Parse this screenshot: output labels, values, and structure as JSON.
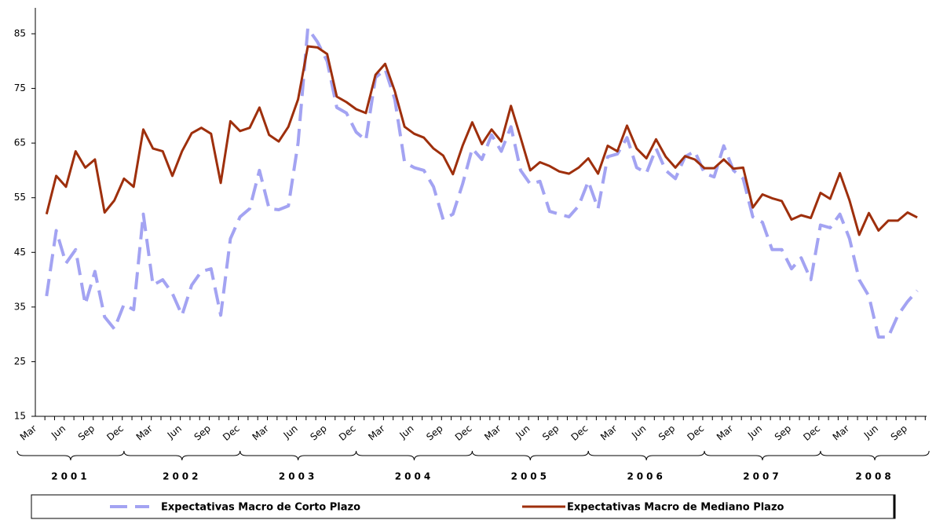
{
  "chart_data": {
    "type": "line",
    "categories": [
      "Mar",
      null,
      null,
      "Jun",
      null,
      null,
      "Sep",
      null,
      null,
      "Dec",
      null,
      null,
      "Mar",
      null,
      null,
      "Jun",
      null,
      null,
      "Sep",
      null,
      null,
      "Dec",
      null,
      null,
      "Mar",
      null,
      null,
      "Jun",
      null,
      null,
      "Sep",
      null,
      null,
      "Dec",
      null,
      null,
      "Mar",
      null,
      null,
      "Jun",
      null,
      null,
      "Sep",
      null,
      null,
      "Dec",
      null,
      null,
      "Mar",
      null,
      null,
      "Jun",
      null,
      null,
      "Sep",
      null,
      null,
      "Dec",
      null,
      null,
      "Mar",
      null,
      null,
      "Jun",
      null,
      null,
      "Sep",
      null,
      null,
      "Dec",
      null,
      null,
      "Mar",
      null,
      null,
      "Jun",
      null,
      null,
      "Sep",
      null,
      null,
      "Dec",
      null,
      null,
      "Mar",
      null,
      null,
      "Jun",
      null,
      null,
      "Sep",
      null
    ],
    "year_labels": [
      "2001",
      "2002",
      "2003",
      "2004",
      "2005",
      "2006",
      "2007",
      "2008"
    ],
    "series": [
      {
        "name": "Expectativas Macro de Corto Plazo",
        "color": "#a3a3f2",
        "dashed": true,
        "values": [
          null,
          37,
          49,
          43,
          45.5,
          35.5,
          41.5,
          33.2,
          31,
          35.5,
          34.5,
          52,
          39,
          40,
          37.5,
          33.5,
          39,
          41.5,
          42,
          33.5,
          47.5,
          51.5,
          53,
          60,
          53,
          52.8,
          53.5,
          65,
          86,
          83.5,
          80,
          71.5,
          70.5,
          67,
          65.5,
          77,
          78.5,
          73,
          61.5,
          60.5,
          60,
          57,
          51,
          52,
          57.5,
          64,
          62,
          66.5,
          63.5,
          68,
          60,
          57.5,
          58,
          52.5,
          52,
          51.5,
          53.5,
          58,
          53,
          62.5,
          63,
          66,
          60.5,
          59.5,
          64,
          60,
          58.5,
          62.5,
          63.5,
          59.5,
          58.8,
          64.5,
          60,
          58.5,
          51.5,
          50.5,
          45.5,
          45.5,
          42,
          44,
          40,
          50,
          49.5,
          52,
          47.5,
          40,
          37,
          29.5,
          29.5,
          33.5,
          36,
          38
        ]
      },
      {
        "name": "Expectativas Macro de Mediano Plazo",
        "color": "#9e2f0c",
        "dashed": false,
        "values": [
          null,
          52,
          59,
          57,
          63.5,
          60.5,
          62,
          52.3,
          54.5,
          58.5,
          57,
          67.5,
          64,
          63.5,
          59,
          63.5,
          66.8,
          67.8,
          66.7,
          57.7,
          69,
          67.2,
          67.8,
          71.5,
          66.5,
          65.3,
          68,
          73,
          82.7,
          82.5,
          81.3,
          73.5,
          72.5,
          71.2,
          70.5,
          77.5,
          79.5,
          74.5,
          68,
          66.7,
          66,
          64,
          62.7,
          59.3,
          64.5,
          68.8,
          64.8,
          67.5,
          65.3,
          71.8,
          66,
          60,
          61.5,
          60.8,
          59.8,
          59.4,
          60.5,
          62.2,
          59.4,
          64.5,
          63.5,
          68.2,
          64,
          62.2,
          65.7,
          62.5,
          60.5,
          62.6,
          62,
          60.4,
          60.4,
          62,
          60.3,
          60.5,
          53.2,
          55.6,
          54.9,
          54.4,
          51,
          51.8,
          51.3,
          55.9,
          54.8,
          59.5,
          54.5,
          48.2,
          52.2,
          49,
          50.8,
          50.8,
          52.3,
          51.4
        ]
      }
    ],
    "ylim": [
      15,
      85
    ],
    "yticks": [
      15,
      25,
      35,
      45,
      55,
      65,
      75,
      85
    ],
    "grid": false
  }
}
